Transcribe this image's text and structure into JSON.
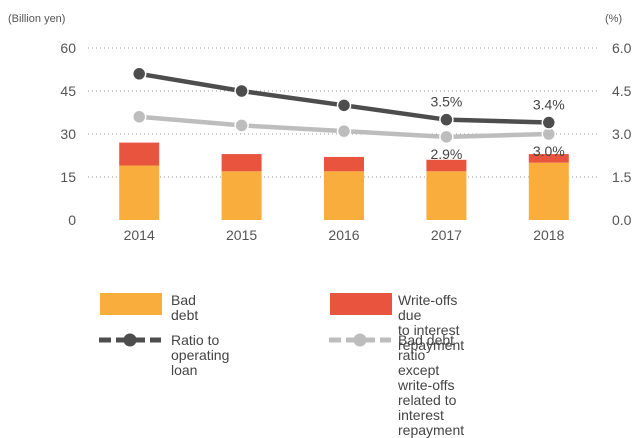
{
  "chart_data": {
    "type": "bar+line",
    "categories": [
      "2014",
      "2015",
      "2016",
      "2017",
      "2018"
    ],
    "left_axis": {
      "unit": "(Billion yen)",
      "ticks": [
        "0",
        "15",
        "30",
        "45",
        "60"
      ],
      "range": [
        0,
        60
      ]
    },
    "right_axis": {
      "unit": "(%)",
      "ticks": [
        "0.0",
        "1.5",
        "3.0",
        "4.5",
        "6.0"
      ],
      "range": [
        0,
        6
      ]
    },
    "grid": "dotted",
    "bar_series": [
      {
        "name": "Bad debt",
        "color": "#f8ad3c",
        "values": [
          19,
          17,
          17,
          17,
          20
        ]
      },
      {
        "name": "Write-offs due to interest repayment",
        "color": "#e9543f",
        "values": [
          8,
          6,
          5,
          4,
          3
        ]
      }
    ],
    "line_series": [
      {
        "name": "Ratio to operating loan",
        "color": "#4d4d4d",
        "values": [
          5.1,
          4.5,
          4.0,
          3.5,
          3.4
        ],
        "data_labels": [
          "",
          "",
          "",
          "3.5%",
          "3.4%"
        ]
      },
      {
        "name": "Bad debt ratio except write-offs related to interest repayment",
        "color": "#bdbdbd",
        "values": [
          3.6,
          3.3,
          3.1,
          2.9,
          3.0
        ],
        "data_labels": [
          "",
          "",
          "",
          "2.9%",
          "3.0%"
        ]
      }
    ]
  },
  "legend": {
    "bad_debt_line1": "Bad debt",
    "writeoffs_line1": "Write-offs due",
    "writeoffs_line2": "to interest repayment",
    "ratio_line1": "Ratio to operating loan",
    "except_line1": "Bad debt ratio except write-offs",
    "except_line2": "related to interest repayment"
  }
}
